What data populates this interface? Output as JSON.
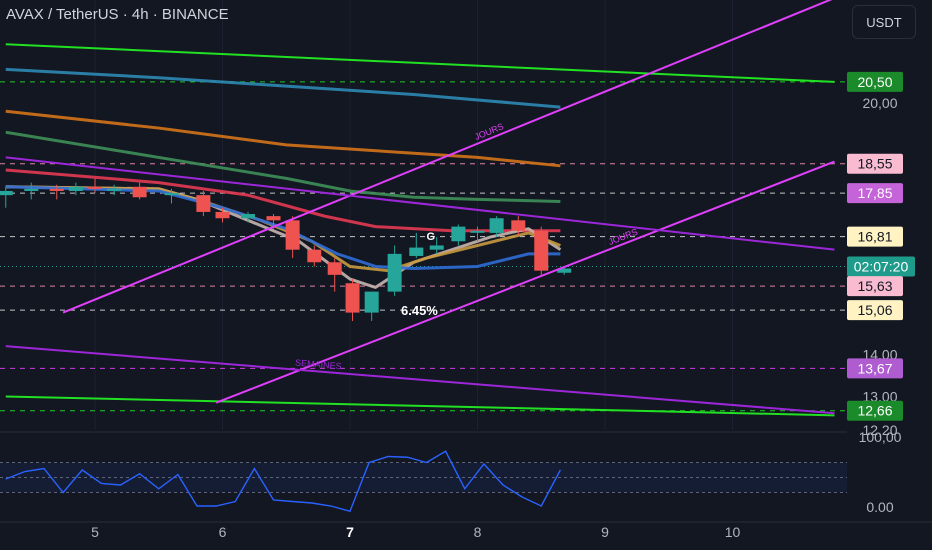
{
  "header": {
    "title": "AVAX / TetherUS · 4h · BINANCE",
    "currency": "USDT"
  },
  "colors": {
    "background": "#131722",
    "candle_up": "#26a69a",
    "candle_down": "#ef5350",
    "green_line": "#22e022",
    "magenta_line": "#e040fb",
    "purple_line": "#9c27d9",
    "rsi_line": "#2962ff"
  },
  "chart_data": [
    {
      "type": "candlestick",
      "ylim": [
        12.2,
        21.5
      ],
      "x_ticks": [
        "5",
        "6",
        "7",
        "8",
        "9",
        "10"
      ],
      "y_ticks": [
        "20,00",
        "14,00",
        "13,00",
        "12,20"
      ],
      "candles": [
        {
          "x": 4.3,
          "o": 17.8,
          "h": 18.0,
          "l": 17.5,
          "c": 17.9
        },
        {
          "x": 4.5,
          "o": 17.9,
          "h": 18.1,
          "l": 17.7,
          "c": 17.95
        },
        {
          "x": 4.7,
          "o": 17.95,
          "h": 18.05,
          "l": 17.7,
          "c": 17.9
        },
        {
          "x": 4.85,
          "o": 17.9,
          "h": 18.1,
          "l": 17.8,
          "c": 18.0
        },
        {
          "x": 5.0,
          "o": 18.0,
          "h": 18.2,
          "l": 17.85,
          "c": 17.95
        },
        {
          "x": 5.15,
          "o": 17.95,
          "h": 18.05,
          "l": 17.8,
          "c": 17.95
        },
        {
          "x": 5.35,
          "o": 18.0,
          "h": 18.1,
          "l": 17.7,
          "c": 17.75
        },
        {
          "x": 5.6,
          "o": 17.8,
          "h": 17.95,
          "l": 17.6,
          "c": 17.85
        },
        {
          "x": 5.85,
          "o": 17.8,
          "h": 17.9,
          "l": 17.3,
          "c": 17.4
        },
        {
          "x": 6.0,
          "o": 17.4,
          "h": 17.5,
          "l": 17.15,
          "c": 17.25
        },
        {
          "x": 6.2,
          "o": 17.25,
          "h": 17.4,
          "l": 17.15,
          "c": 17.35
        },
        {
          "x": 6.4,
          "o": 17.3,
          "h": 17.35,
          "l": 17.0,
          "c": 17.2
        },
        {
          "x": 6.55,
          "o": 17.2,
          "h": 17.3,
          "l": 16.3,
          "c": 16.5
        },
        {
          "x": 6.72,
          "o": 16.5,
          "h": 16.6,
          "l": 16.1,
          "c": 16.2
        },
        {
          "x": 6.88,
          "o": 16.2,
          "h": 16.3,
          "l": 15.5,
          "c": 15.9
        },
        {
          "x": 7.02,
          "o": 15.7,
          "h": 15.8,
          "l": 14.8,
          "c": 15.0
        },
        {
          "x": 7.17,
          "o": 15.0,
          "h": 15.5,
          "l": 14.8,
          "c": 15.5
        },
        {
          "x": 7.35,
          "o": 15.5,
          "h": 16.6,
          "l": 15.4,
          "c": 16.4
        },
        {
          "x": 7.52,
          "o": 16.35,
          "h": 16.9,
          "l": 16.3,
          "c": 16.55
        },
        {
          "x": 7.68,
          "o": 16.5,
          "h": 16.8,
          "l": 16.4,
          "c": 16.6
        },
        {
          "x": 7.85,
          "o": 16.7,
          "h": 17.1,
          "l": 16.6,
          "c": 17.05
        },
        {
          "x": 8.0,
          "o": 16.95,
          "h": 17.05,
          "l": 16.7,
          "c": 16.95
        },
        {
          "x": 8.15,
          "o": 16.9,
          "h": 17.3,
          "l": 16.8,
          "c": 17.25
        },
        {
          "x": 8.32,
          "o": 17.2,
          "h": 17.3,
          "l": 16.85,
          "c": 16.95
        },
        {
          "x": 8.5,
          "o": 16.95,
          "h": 17.05,
          "l": 15.9,
          "c": 16.0
        },
        {
          "x": 8.68,
          "o": 15.95,
          "h": 16.1,
          "l": 15.9,
          "c": 16.05
        }
      ],
      "moving_averages": [
        {
          "color": "#2d8ab5",
          "points": [
            [
              4.3,
              20.8
            ],
            [
              5.5,
              20.6
            ],
            [
              6.5,
              20.4
            ],
            [
              7.5,
              20.2
            ],
            [
              8.65,
              19.9
            ]
          ]
        },
        {
          "color": "#d4731a",
          "points": [
            [
              4.3,
              19.8
            ],
            [
              5.5,
              19.4
            ],
            [
              6.5,
              19.0
            ],
            [
              7.5,
              18.8
            ],
            [
              8.0,
              18.7
            ],
            [
              8.65,
              18.5
            ]
          ]
        },
        {
          "color": "#3f8f58",
          "points": [
            [
              4.3,
              19.3
            ],
            [
              5.5,
              18.7
            ],
            [
              6.5,
              18.2
            ],
            [
              7.0,
              17.9
            ],
            [
              7.5,
              17.75
            ],
            [
              8.0,
              17.7
            ],
            [
              8.65,
              17.65
            ]
          ]
        },
        {
          "color": "#e63a52",
          "points": [
            [
              4.3,
              18.4
            ],
            [
              5.5,
              18.1
            ],
            [
              6.2,
              17.8
            ],
            [
              6.8,
              17.3
            ],
            [
              7.2,
              17.05
            ],
            [
              7.8,
              16.95
            ],
            [
              8.3,
              16.95
            ],
            [
              8.65,
              16.95
            ]
          ]
        },
        {
          "color": "#c8b6b0",
          "points": [
            [
              4.3,
              18.0
            ],
            [
              5.5,
              17.95
            ],
            [
              5.8,
              17.7
            ],
            [
              6.2,
              17.2
            ],
            [
              6.6,
              16.7
            ],
            [
              7.0,
              15.8
            ],
            [
              7.2,
              15.6
            ],
            [
              7.5,
              16.2
            ],
            [
              7.8,
              16.5
            ],
            [
              8.1,
              16.8
            ],
            [
              8.4,
              17.0
            ],
            [
              8.65,
              16.5
            ]
          ]
        },
        {
          "color": "#c99a40",
          "points": [
            [
              4.3,
              18.0
            ],
            [
              5.5,
              17.95
            ],
            [
              5.9,
              17.6
            ],
            [
              6.3,
              17.2
            ],
            [
              6.7,
              16.7
            ],
            [
              7.0,
              16.1
            ],
            [
              7.3,
              16.0
            ],
            [
              7.6,
              16.3
            ],
            [
              8.0,
              16.6
            ],
            [
              8.4,
              16.9
            ],
            [
              8.65,
              16.6
            ]
          ]
        },
        {
          "color": "#2f6dd6",
          "points": [
            [
              4.3,
              18.0
            ],
            [
              5.5,
              17.9
            ],
            [
              6.0,
              17.5
            ],
            [
              6.5,
              17.0
            ],
            [
              6.9,
              16.4
            ],
            [
              7.2,
              16.1
            ],
            [
              7.5,
              16.05
            ],
            [
              8.0,
              16.1
            ],
            [
              8.4,
              16.4
            ],
            [
              8.65,
              16.4
            ]
          ]
        }
      ],
      "trend_lines": [
        {
          "color": "#22e022",
          "points": [
            [
              4.3,
              21.4
            ],
            [
              10.8,
              20.5
            ]
          ]
        },
        {
          "color": "#22e022",
          "points": [
            [
              4.3,
              13.0
            ],
            [
              10.8,
              12.55
            ]
          ]
        },
        {
          "color": "#e040fb",
          "points": [
            [
              4.75,
              15.0
            ],
            [
              10.8,
              22.5
            ]
          ],
          "label": "JOURS",
          "label_x": 8.1
        },
        {
          "color": "#e040fb",
          "points": [
            [
              5.95,
              12.85
            ],
            [
              10.8,
              18.6
            ]
          ],
          "label": "JOURS",
          "label_x": 9.15
        },
        {
          "color": "#9c27d9",
          "points": [
            [
              4.3,
              18.7
            ],
            [
              10.8,
              16.5
            ]
          ]
        },
        {
          "color": "#9c27d9",
          "points": [
            [
              4.3,
              14.2
            ],
            [
              10.8,
              12.6
            ]
          ],
          "label": "SEMAINES",
          "label_x": 6.75
        }
      ],
      "horizontal_levels": [
        {
          "value": 20.5,
          "label": "20,50",
          "color": "#22e022",
          "style": "dashed",
          "badge_bg": "#1b8a2b",
          "badge_fg": "#ffffff"
        },
        {
          "value": 18.55,
          "label": "18,55",
          "color": "#f48fb1",
          "style": "dashed",
          "badge_bg": "#f8bbd0",
          "badge_fg": "#131722"
        },
        {
          "value": 17.85,
          "label": "17,85",
          "color": "#ffffff",
          "style": "dashed",
          "badge_bg": "#c564d8",
          "badge_fg": "#ffffff"
        },
        {
          "value": 16.81,
          "label": "16,81",
          "color": "#ffffff",
          "style": "dashed",
          "badge_bg": "#fff3c4",
          "badge_fg": "#131722"
        },
        {
          "value": 16.1,
          "label": "02:07:20",
          "color": "#26a69a",
          "style": "dotted",
          "badge_bg": "#1f9b8c",
          "badge_fg": "#ffffff"
        },
        {
          "value": 15.63,
          "label": "15,63",
          "color": "#f48fb1",
          "style": "dashed",
          "badge_bg": "#f8bbd0",
          "badge_fg": "#131722"
        },
        {
          "value": 15.06,
          "label": "15,06",
          "color": "#ffffff",
          "style": "dashed",
          "badge_bg": "#fff3c4",
          "badge_fg": "#131722"
        },
        {
          "value": 13.67,
          "label": "13,67",
          "color": "#e040fb",
          "style": "dashed",
          "badge_bg": "#b05cd1",
          "badge_fg": "#ffffff"
        },
        {
          "value": 12.66,
          "label": "12,66",
          "color": "#22e022",
          "style": "dashed",
          "badge_bg": "#1b8a2b",
          "badge_fg": "#ffffff"
        }
      ],
      "annotations": [
        {
          "text": "G",
          "x": 7.6,
          "y": 16.85
        },
        {
          "text": "6.45%",
          "x": 7.4,
          "y": 15.06
        }
      ]
    },
    {
      "type": "line",
      "name": "rsi",
      "ylim": [
        0,
        100
      ],
      "y_ticks": [
        "100,00",
        "0.00"
      ],
      "band": [
        30,
        70
      ],
      "x": [
        4.3,
        4.45,
        4.6,
        4.75,
        4.9,
        5.05,
        5.2,
        5.35,
        5.5,
        5.65,
        5.8,
        5.95,
        6.1,
        6.25,
        6.4,
        6.55,
        6.7,
        6.85,
        7.0,
        7.15,
        7.3,
        7.45,
        7.6,
        7.75,
        7.9,
        8.05,
        8.2,
        8.35,
        8.5,
        8.65
      ],
      "values": [
        48,
        58,
        62,
        30,
        60,
        42,
        40,
        55,
        35,
        54,
        12,
        12,
        18,
        62,
        20,
        18,
        16,
        12,
        5,
        70,
        78,
        77,
        70,
        85,
        35,
        68,
        40,
        24,
        12,
        60
      ]
    }
  ]
}
